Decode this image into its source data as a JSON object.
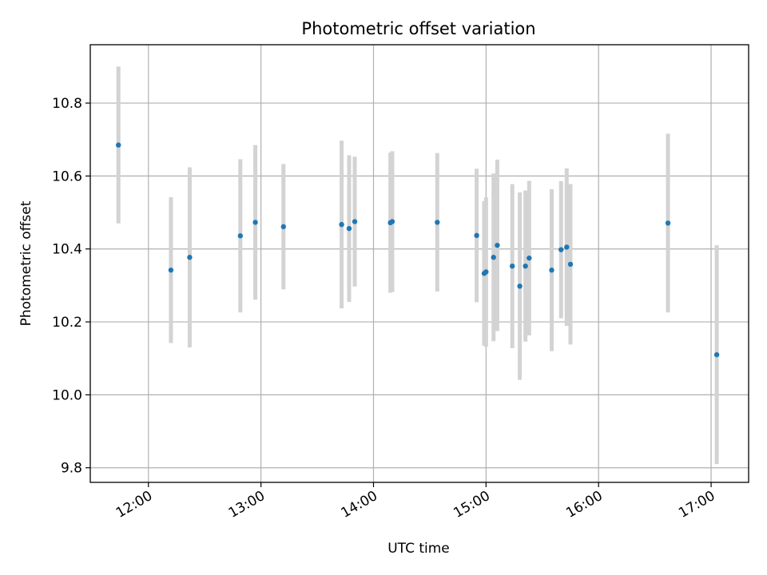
{
  "chart_data": {
    "type": "scatter",
    "title": "Photometric offset variation",
    "xlabel": "UTC time",
    "ylabel": "Photometric offset",
    "x_tick_labels": [
      "12:00",
      "13:00",
      "14:00",
      "15:00",
      "16:00",
      "17:00"
    ],
    "y_tick_labels": [
      "9.8",
      "10.0",
      "10.2",
      "10.4",
      "10.6",
      "10.8"
    ],
    "x_ticks": [
      "12:00",
      "13:00",
      "14:00",
      "15:00",
      "16:00",
      "17:00"
    ],
    "y_ticks": [
      9.8,
      10.0,
      10.2,
      10.4,
      10.6,
      10.8
    ],
    "xlim": [
      "11:29",
      "17:20"
    ],
    "ylim": [
      9.76,
      10.96
    ],
    "grid": true,
    "point_color": "#1f77b4",
    "errorbar_color": "#d3d3d3",
    "points": [
      {
        "x": "11:44",
        "y": 10.685,
        "err": 0.215
      },
      {
        "x": "12:12",
        "y": 10.342,
        "err": 0.2
      },
      {
        "x": "12:22",
        "y": 10.377,
        "err": 0.247
      },
      {
        "x": "12:49",
        "y": 10.436,
        "err": 0.21
      },
      {
        "x": "12:57",
        "y": 10.473,
        "err": 0.212
      },
      {
        "x": "13:12",
        "y": 10.461,
        "err": 0.172
      },
      {
        "x": "13:43",
        "y": 10.467,
        "err": 0.23
      },
      {
        "x": "13:47",
        "y": 10.456,
        "err": 0.201
      },
      {
        "x": "13:50",
        "y": 10.475,
        "err": 0.178
      },
      {
        "x": "14:09",
        "y": 10.472,
        "err": 0.192
      },
      {
        "x": "14:10",
        "y": 10.475,
        "err": 0.193
      },
      {
        "x": "14:34",
        "y": 10.473,
        "err": 0.19
      },
      {
        "x": "14:55",
        "y": 10.437,
        "err": 0.183
      },
      {
        "x": "14:59",
        "y": 10.333,
        "err": 0.198
      },
      {
        "x": "15:00",
        "y": 10.337,
        "err": 0.205
      },
      {
        "x": "15:04",
        "y": 10.377,
        "err": 0.23
      },
      {
        "x": "15:06",
        "y": 10.41,
        "err": 0.235
      },
      {
        "x": "15:14",
        "y": 10.353,
        "err": 0.225
      },
      {
        "x": "15:18",
        "y": 10.298,
        "err": 0.257
      },
      {
        "x": "15:21",
        "y": 10.353,
        "err": 0.207
      },
      {
        "x": "15:23",
        "y": 10.375,
        "err": 0.212
      },
      {
        "x": "15:35",
        "y": 10.342,
        "err": 0.222
      },
      {
        "x": "15:40",
        "y": 10.398,
        "err": 0.188
      },
      {
        "x": "15:43",
        "y": 10.405,
        "err": 0.216
      },
      {
        "x": "15:45",
        "y": 10.358,
        "err": 0.22
      },
      {
        "x": "16:37",
        "y": 10.471,
        "err": 0.245
      },
      {
        "x": "17:03",
        "y": 10.11,
        "err": 0.3
      }
    ]
  }
}
